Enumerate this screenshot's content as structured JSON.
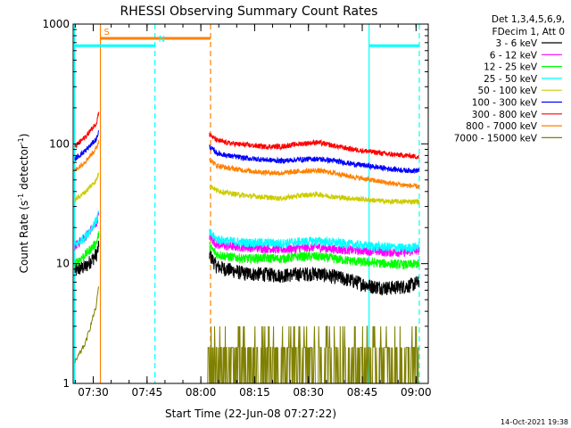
{
  "chart_data": {
    "type": "line",
    "title": "RHESSI Observing Summary Count Rates",
    "xlabel": "Start Time (22-Jun-08 07:27:22)",
    "ylabel_main": "Count Rate (s",
    "ylabel_sup1": "-1",
    "ylabel_mid": " detector",
    "ylabel_sup2": "-1",
    "ylabel_end": ")",
    "x_unit": "minutes after 07:27:22 UT",
    "xlim": [
      -3,
      96
    ],
    "ylim": [
      1,
      1000
    ],
    "y_scale": "log",
    "x_ticks": [
      {
        "t": 2.6,
        "label": "07:30"
      },
      {
        "t": 17.6,
        "label": "07:45"
      },
      {
        "t": 32.6,
        "label": "08:00"
      },
      {
        "t": 47.6,
        "label": "08:15"
      },
      {
        "t": 62.6,
        "label": "08:30"
      },
      {
        "t": 77.6,
        "label": "08:45"
      },
      {
        "t": 92.6,
        "label": "09:00"
      }
    ],
    "y_ticks": [
      {
        "v": 1,
        "label": "1"
      },
      {
        "v": 10,
        "label": "10"
      },
      {
        "v": 100,
        "label": "100"
      },
      {
        "v": 1000,
        "label": "1000"
      }
    ],
    "legend": {
      "header": [
        "Det 1,3,4,5,6,9,",
        "FDecim 1, Att 0"
      ],
      "placement": "right-outside"
    },
    "series": [
      {
        "name": "3 - 6 keV",
        "color": "#000000",
        "seg1": [
          [
            -2.5,
            8.8
          ],
          [
            0.5,
            9.5
          ],
          [
            3.5,
            12
          ],
          [
            4.2,
            14
          ]
        ],
        "seg2": [
          [
            35,
            12
          ],
          [
            37,
            9.5
          ],
          [
            40,
            9
          ],
          [
            45,
            8.3
          ],
          [
            50,
            8.2
          ],
          [
            55,
            8.0
          ],
          [
            60,
            8.2
          ],
          [
            65,
            8.3
          ],
          [
            70,
            7.8
          ],
          [
            75,
            7.2
          ],
          [
            80,
            6.5
          ],
          [
            85,
            6.3
          ],
          [
            90,
            6.5
          ],
          [
            93.5,
            7
          ]
        ]
      },
      {
        "name": "6 - 12 keV",
        "color": "#ff00ff",
        "seg1": [
          [
            -2.5,
            14
          ],
          [
            0.5,
            17
          ],
          [
            3.5,
            22
          ],
          [
            4.2,
            26
          ]
        ],
        "seg2": [
          [
            35,
            17
          ],
          [
            37,
            14.5
          ],
          [
            40,
            14
          ],
          [
            45,
            13.8
          ],
          [
            50,
            13.5
          ],
          [
            55,
            13.2
          ],
          [
            60,
            13.5
          ],
          [
            65,
            13.8
          ],
          [
            70,
            13.2
          ],
          [
            75,
            13
          ],
          [
            80,
            12.8
          ],
          [
            85,
            12.5
          ],
          [
            90,
            12.5
          ],
          [
            93.5,
            13
          ]
        ]
      },
      {
        "name": "12 - 25 keV",
        "color": "#00ff00",
        "seg1": [
          [
            -2.5,
            10
          ],
          [
            0.5,
            12
          ],
          [
            3.5,
            15
          ],
          [
            4.2,
            18
          ]
        ],
        "seg2": [
          [
            35,
            14
          ],
          [
            37,
            12
          ],
          [
            40,
            11.5
          ],
          [
            45,
            11
          ],
          [
            50,
            11.2
          ],
          [
            55,
            11
          ],
          [
            60,
            11.5
          ],
          [
            65,
            11.5
          ],
          [
            70,
            11
          ],
          [
            75,
            10.5
          ],
          [
            80,
            10.2
          ],
          [
            85,
            10
          ],
          [
            90,
            9.8
          ],
          [
            93.5,
            10
          ]
        ]
      },
      {
        "name": "25 - 50 keV",
        "color": "#00ffff",
        "seg1": [
          [
            -2.5,
            14
          ],
          [
            0.5,
            17
          ],
          [
            3.5,
            23
          ],
          [
            4.2,
            27
          ]
        ],
        "seg2": [
          [
            35,
            18
          ],
          [
            37,
            16
          ],
          [
            40,
            15.5
          ],
          [
            45,
            15
          ],
          [
            50,
            15
          ],
          [
            55,
            14.8
          ],
          [
            60,
            15.2
          ],
          [
            65,
            15.5
          ],
          [
            70,
            15
          ],
          [
            75,
            14.5
          ],
          [
            80,
            14
          ],
          [
            85,
            13.8
          ],
          [
            90,
            13.5
          ],
          [
            93.5,
            14
          ]
        ]
      },
      {
        "name": "50 - 100 keV",
        "color": "#cccc00",
        "seg1": [
          [
            -2.5,
            34
          ],
          [
            0.5,
            40
          ],
          [
            3.5,
            50
          ],
          [
            4.2,
            58
          ]
        ],
        "seg2": [
          [
            35,
            45
          ],
          [
            37,
            41
          ],
          [
            40,
            39
          ],
          [
            45,
            37
          ],
          [
            50,
            36
          ],
          [
            55,
            35
          ],
          [
            60,
            37
          ],
          [
            65,
            38
          ],
          [
            70,
            36
          ],
          [
            75,
            35
          ],
          [
            80,
            34
          ],
          [
            85,
            33
          ],
          [
            90,
            33
          ],
          [
            93.5,
            33
          ]
        ]
      },
      {
        "name": "100 - 300 keV",
        "color": "#0000ff",
        "seg1": [
          [
            -2.5,
            75
          ],
          [
            0.5,
            88
          ],
          [
            3.5,
            110
          ],
          [
            4.2,
            130
          ]
        ],
        "seg2": [
          [
            35,
            95
          ],
          [
            37,
            84
          ],
          [
            40,
            80
          ],
          [
            45,
            76
          ],
          [
            50,
            74
          ],
          [
            55,
            72
          ],
          [
            60,
            74
          ],
          [
            65,
            75
          ],
          [
            70,
            72
          ],
          [
            75,
            68
          ],
          [
            80,
            65
          ],
          [
            85,
            62
          ],
          [
            90,
            60
          ],
          [
            93.5,
            60
          ]
        ]
      },
      {
        "name": "300 - 800 keV",
        "color": "#ff0000",
        "seg1": [
          [
            -2.5,
            95
          ],
          [
            0.5,
            115
          ],
          [
            3.5,
            150
          ],
          [
            4.2,
            190
          ]
        ],
        "seg2": [
          [
            35,
            120
          ],
          [
            37,
            107
          ],
          [
            40,
            102
          ],
          [
            45,
            98
          ],
          [
            50,
            95
          ],
          [
            55,
            95
          ],
          [
            60,
            100
          ],
          [
            65,
            103
          ],
          [
            70,
            96
          ],
          [
            75,
            90
          ],
          [
            80,
            86
          ],
          [
            85,
            82
          ],
          [
            90,
            80
          ],
          [
            93.5,
            78
          ]
        ]
      },
      {
        "name": "800 - 7000 keV",
        "color": "#ff8000",
        "seg1": [
          [
            -2.5,
            60
          ],
          [
            0.5,
            72
          ],
          [
            3.5,
            92
          ],
          [
            4.2,
            108
          ]
        ],
        "seg2": [
          [
            35,
            75
          ],
          [
            37,
            66
          ],
          [
            40,
            63
          ],
          [
            45,
            60
          ],
          [
            50,
            58
          ],
          [
            55,
            57
          ],
          [
            60,
            59
          ],
          [
            65,
            60
          ],
          [
            70,
            57
          ],
          [
            75,
            53
          ],
          [
            80,
            50
          ],
          [
            85,
            47
          ],
          [
            90,
            45
          ],
          [
            93.5,
            44
          ]
        ]
      },
      {
        "name": "7000 - 15000 keV",
        "color": "#808000",
        "seg1": [
          [
            -2.5,
            1.5
          ],
          [
            0.5,
            2.2
          ],
          [
            3.5,
            4.5
          ],
          [
            4.2,
            7
          ]
        ],
        "seg2": [
          [
            34.5,
            2
          ],
          [
            40,
            2
          ],
          [
            50,
            2
          ],
          [
            55,
            2
          ],
          [
            60,
            2.5
          ],
          [
            65,
            2
          ],
          [
            70,
            2
          ],
          [
            80,
            2
          ],
          [
            90,
            2
          ],
          [
            93.5,
            2
          ]
        ]
      }
    ],
    "annotations": {
      "flags": [
        {
          "label": "S",
          "color": "#ff8000",
          "line_t": 4.6,
          "y": 760,
          "t1": 4.6,
          "t2": 35.3
        },
        {
          "label": "N",
          "color": "#00ffff",
          "line_t": 19.8,
          "y": 660,
          "t1": -2.6,
          "t2": 19.8
        },
        {
          "label": "",
          "color": "#00ffff",
          "line_t": null,
          "y": 660,
          "t1": 79.5,
          "t2": 93.5
        }
      ],
      "vlines": [
        {
          "t": 4.6,
          "color": "#ff8000",
          "style": "solid"
        },
        {
          "t": -2.6,
          "color": "#00ffff",
          "style": "solid"
        },
        {
          "t": 19.8,
          "color": "#00ffff",
          "style": "dashed"
        },
        {
          "t": 35.3,
          "color": "#ff8000",
          "style": "dashed"
        },
        {
          "t": 79.5,
          "color": "#00ffff",
          "style": "solid"
        },
        {
          "t": 93.5,
          "color": "#00ffff",
          "style": "dashed"
        }
      ]
    },
    "grid": false,
    "footer_date": "14-Oct-2021 19:38"
  }
}
